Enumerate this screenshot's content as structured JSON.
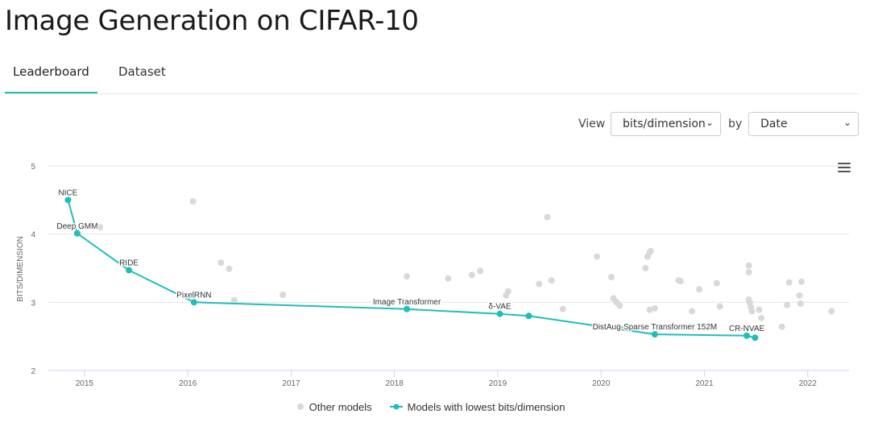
{
  "page": {
    "title": "Image Generation on CIFAR-10",
    "tabs": [
      {
        "label": "Leaderboard",
        "active": true
      },
      {
        "label": "Dataset",
        "active": false
      }
    ]
  },
  "controls": {
    "view_label": "View",
    "view_value": "bits/dimension",
    "by_label": "by",
    "by_value": "Date"
  },
  "colors": {
    "accent": "#21bdbd",
    "other_points": "#d9d9d9",
    "grid": "#e6e6e6"
  },
  "chart_data": {
    "type": "scatter",
    "ylabel": "BITS/DIMENSION",
    "xlabel": "",
    "xlim": [
      2014.65,
      2022.4
    ],
    "ylim": [
      2,
      5
    ],
    "yticks": [
      2,
      3,
      4,
      5
    ],
    "xticks": [
      2015,
      2016,
      2017,
      2018,
      2019,
      2020,
      2021,
      2022
    ],
    "grid": "horizontal",
    "legend_position": "bottom-center",
    "series": [
      {
        "name": "Other models",
        "values": [
          [
            2015.15,
            4.1
          ],
          [
            2016.05,
            4.48
          ],
          [
            2016.32,
            3.58
          ],
          [
            2016.4,
            3.49
          ],
          [
            2016.45,
            3.03
          ],
          [
            2016.92,
            3.11
          ],
          [
            2018.12,
            3.38
          ],
          [
            2018.52,
            3.35
          ],
          [
            2018.75,
            3.4
          ],
          [
            2018.83,
            3.46
          ],
          [
            2019.08,
            3.1
          ],
          [
            2019.1,
            3.16
          ],
          [
            2019.4,
            3.27
          ],
          [
            2019.48,
            4.25
          ],
          [
            2019.52,
            3.32
          ],
          [
            2019.63,
            2.9
          ],
          [
            2019.96,
            3.67
          ],
          [
            2020.1,
            3.37
          ],
          [
            2020.12,
            3.06
          ],
          [
            2020.15,
            3.0
          ],
          [
            2020.18,
            2.95
          ],
          [
            2020.43,
            3.5
          ],
          [
            2020.45,
            3.67
          ],
          [
            2020.47,
            3.73
          ],
          [
            2020.48,
            3.75
          ],
          [
            2020.47,
            2.89
          ],
          [
            2020.52,
            2.91
          ],
          [
            2020.75,
            3.32
          ],
          [
            2020.77,
            3.31
          ],
          [
            2020.88,
            2.87
          ],
          [
            2020.95,
            3.19
          ],
          [
            2021.12,
            3.28
          ],
          [
            2021.15,
            2.94
          ],
          [
            2021.43,
            3.54
          ],
          [
            2021.43,
            3.44
          ],
          [
            2021.43,
            3.04
          ],
          [
            2021.44,
            2.99
          ],
          [
            2021.45,
            2.93
          ],
          [
            2021.46,
            2.87
          ],
          [
            2021.53,
            2.89
          ],
          [
            2021.55,
            2.77
          ],
          [
            2021.75,
            2.64
          ],
          [
            2021.8,
            2.96
          ],
          [
            2021.82,
            3.29
          ],
          [
            2021.92,
            3.1
          ],
          [
            2021.93,
            2.98
          ],
          [
            2021.94,
            3.3
          ],
          [
            2022.23,
            2.87
          ]
        ]
      },
      {
        "name": "Models with lowest bits/dimension",
        "points": [
          {
            "x": 2014.84,
            "y": 4.5,
            "label": "NICE"
          },
          {
            "x": 2014.93,
            "y": 4.01,
            "label": "Deep GMM"
          },
          {
            "x": 2015.43,
            "y": 3.47,
            "label": "RIDE"
          },
          {
            "x": 2016.06,
            "y": 3.0,
            "label": "PixelRNN"
          },
          {
            "x": 2018.12,
            "y": 2.9,
            "label": "Image Transformer"
          },
          {
            "x": 2019.02,
            "y": 2.83,
            "label": "δ-VAE"
          },
          {
            "x": 2019.3,
            "y": 2.8,
            "label": ""
          },
          {
            "x": 2020.52,
            "y": 2.53,
            "label": "DistAug-Sparse Transformer 152M"
          },
          {
            "x": 2021.41,
            "y": 2.51,
            "label": "CR-NVAE"
          },
          {
            "x": 2021.49,
            "y": 2.48,
            "label": ""
          }
        ]
      }
    ]
  }
}
